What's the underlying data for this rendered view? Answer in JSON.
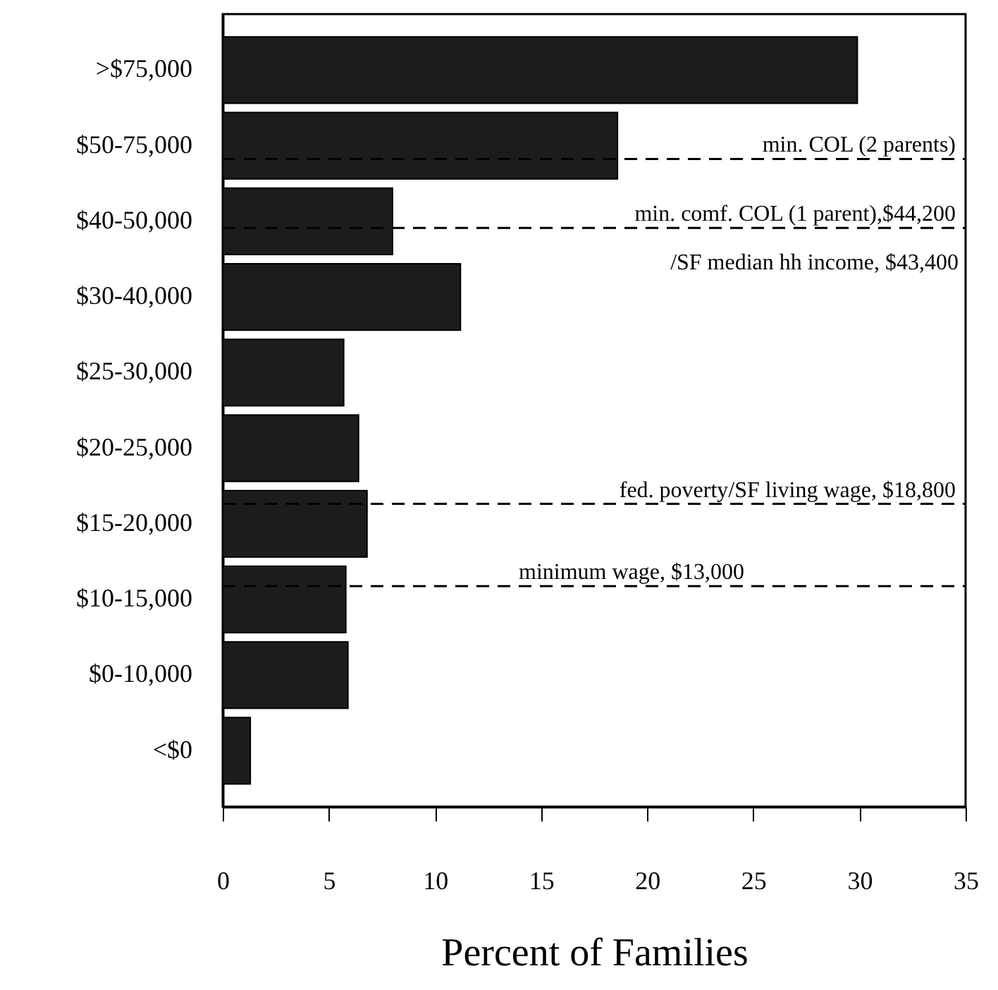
{
  "chart_data": {
    "type": "bar",
    "orientation": "horizontal",
    "xlabel": "Percent of Families",
    "categories": [
      ">$75,000",
      "$50-75,000",
      "$40-50,000",
      "$30-40,000",
      "$25-30,000",
      "$20-25,000",
      "$15-20,000",
      "$10-15,000",
      "$0-10,000",
      "<$0"
    ],
    "values": [
      29.9,
      18.6,
      8.0,
      11.2,
      5.7,
      6.4,
      6.8,
      5.8,
      5.9,
      1.3
    ],
    "color": "#1c1c1c",
    "xlim": [
      0,
      35
    ],
    "xticks": [
      0,
      5,
      10,
      15,
      20,
      25,
      30,
      35
    ],
    "grid": false,
    "ref_lines": [
      {
        "axis": "y",
        "value": "$50-75,000",
        "label": "min. COL (2 parents)",
        "line_style": "dashed"
      },
      {
        "axis": "y",
        "value": "$40-50,000",
        "label": "min. comf. COL (1 parent),$44,200",
        "line_style": "dashed"
      },
      {
        "axis": "y",
        "value": "$15-20,000",
        "label": "fed. poverty/SF living wage, $18,800",
        "line_style": "dashed"
      },
      {
        "axis": "y",
        "value": "$10-15,000",
        "label": "minimum wage, $13,000",
        "line_style": "dashed"
      }
    ],
    "annotations": [
      "/SF median hh income, $43,400"
    ]
  }
}
